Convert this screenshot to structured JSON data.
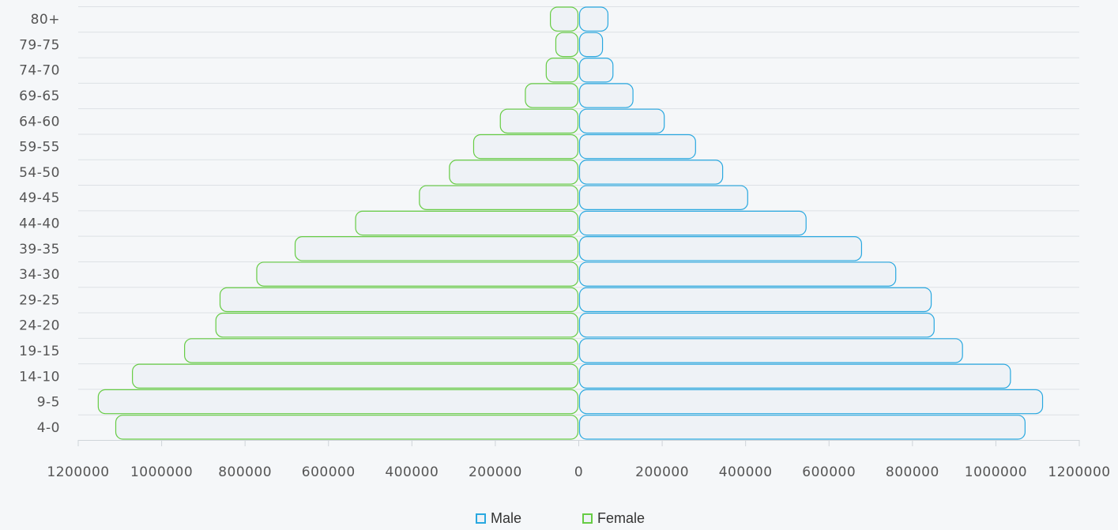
{
  "chart_data": {
    "type": "bar",
    "orientation": "horizontal",
    "categories": [
      "80+",
      "79-75",
      "74-70",
      "69-65",
      "64-60",
      "59-55",
      "54-50",
      "49-45",
      "44-40",
      "39-35",
      "34-30",
      "29-25",
      "24-20",
      "19-15",
      "14-10",
      "9-5",
      "4-0"
    ],
    "series": [
      {
        "name": "Male",
        "color": "#29a8e0",
        "values": [
          70000,
          57000,
          82000,
          130000,
          205000,
          280000,
          345000,
          405000,
          545000,
          678000,
          760000,
          845000,
          852000,
          920000,
          1035000,
          1112000,
          1070000
        ]
      },
      {
        "name": "Female",
        "color": "#66cc44",
        "values": [
          68000,
          55000,
          78000,
          128000,
          188000,
          252000,
          310000,
          382000,
          535000,
          680000,
          772000,
          860000,
          870000,
          945000,
          1070000,
          1152000,
          1110000
        ]
      }
    ],
    "xticks": [
      "1200000",
      "1000000",
      "800000",
      "600000",
      "400000",
      "200000",
      "0",
      "200000",
      "400000",
      "600000",
      "800000",
      "1000000",
      "1200000"
    ],
    "xlim": [
      -1200000,
      1200000
    ],
    "xlabel": "",
    "ylabel": "",
    "title": "",
    "bar_fill": "#eef2f6",
    "grid": true,
    "legend_position": "bottom-center"
  },
  "legend": {
    "male_label": "Male",
    "female_label": "Female"
  }
}
